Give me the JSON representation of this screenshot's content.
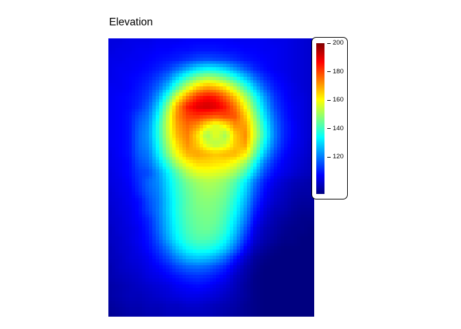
{
  "chart_data": {
    "type": "heatmap",
    "title": "Elevation",
    "value_range": [
      94,
      200
    ],
    "colormap": {
      "name": "jet",
      "stops": [
        [
          0.0,
          "#000080"
        ],
        [
          0.125,
          "#0000ff"
        ],
        [
          0.375,
          "#00ffff"
        ],
        [
          0.625,
          "#ffff00"
        ],
        [
          0.875,
          "#ff0000"
        ],
        [
          1.0,
          "#800000"
        ]
      ]
    },
    "colorbar": {
      "position": "right",
      "ticks": [
        200,
        180,
        160,
        140,
        120
      ]
    },
    "grid": {
      "cols": 22,
      "rows": 30,
      "values": [
        [
          104,
          104,
          105,
          105,
          105,
          106,
          106,
          106,
          107,
          107,
          107,
          107,
          107,
          106,
          106,
          106,
          106,
          105,
          105,
          104,
          103,
          102
        ],
        [
          104,
          105,
          105,
          106,
          106,
          107,
          107,
          108,
          108,
          109,
          109,
          109,
          108,
          108,
          107,
          107,
          106,
          106,
          105,
          104,
          103,
          102
        ],
        [
          105,
          105,
          106,
          106,
          107,
          108,
          109,
          110,
          112,
          114,
          115,
          114,
          113,
          111,
          109,
          108,
          107,
          106,
          105,
          104,
          103,
          102
        ],
        [
          105,
          106,
          106,
          107,
          108,
          110,
          113,
          118,
          124,
          130,
          133,
          132,
          128,
          122,
          116,
          111,
          108,
          106,
          105,
          104,
          103,
          102
        ],
        [
          105,
          106,
          107,
          108,
          110,
          114,
          120,
          130,
          140,
          148,
          152,
          150,
          145,
          137,
          128,
          119,
          112,
          108,
          106,
          104,
          103,
          102
        ],
        [
          106,
          106,
          107,
          109,
          112,
          118,
          128,
          142,
          155,
          165,
          170,
          168,
          162,
          152,
          140,
          128,
          117,
          110,
          107,
          105,
          103,
          102
        ],
        [
          106,
          107,
          108,
          110,
          114,
          124,
          140,
          158,
          172,
          182,
          186,
          184,
          176,
          166,
          152,
          138,
          124,
          113,
          108,
          105,
          104,
          102
        ],
        [
          106,
          107,
          108,
          111,
          117,
          130,
          150,
          170,
          184,
          190,
          192,
          190,
          184,
          174,
          160,
          144,
          128,
          115,
          109,
          106,
          104,
          102
        ],
        [
          106,
          107,
          109,
          115,
          120,
          135,
          155,
          172,
          180,
          182,
          180,
          178,
          180,
          178,
          166,
          150,
          132,
          118,
          110,
          106,
          104,
          102
        ],
        [
          106,
          107,
          109,
          117,
          122,
          138,
          156,
          170,
          176,
          172,
          162,
          156,
          162,
          172,
          170,
          154,
          136,
          120,
          111,
          107,
          104,
          102
        ],
        [
          106,
          107,
          109,
          118,
          123,
          138,
          155,
          168,
          174,
          164,
          150,
          158,
          150,
          166,
          172,
          156,
          138,
          121,
          111,
          107,
          104,
          102
        ],
        [
          106,
          107,
          109,
          118,
          122,
          136,
          152,
          164,
          172,
          166,
          156,
          152,
          156,
          166,
          170,
          152,
          134,
          119,
          110,
          106,
          104,
          101
        ],
        [
          105,
          107,
          109,
          117,
          120,
          133,
          148,
          160,
          168,
          170,
          168,
          166,
          168,
          168,
          162,
          146,
          128,
          115,
          108,
          105,
          103,
          101
        ],
        [
          105,
          106,
          108,
          115,
          118,
          128,
          140,
          152,
          160,
          164,
          164,
          163,
          162,
          158,
          150,
          136,
          120,
          111,
          106,
          104,
          102,
          100
        ],
        [
          104,
          106,
          108,
          113,
          115,
          123,
          133,
          143,
          152,
          157,
          158,
          157,
          155,
          150,
          141,
          128,
          115,
          108,
          105,
          103,
          101,
          100
        ],
        [
          104,
          105,
          107,
          112,
          118,
          122,
          131,
          139,
          146,
          150,
          152,
          151,
          148,
          142,
          132,
          120,
          110,
          105,
          102,
          100,
          99,
          98
        ],
        [
          103,
          105,
          106,
          111,
          117,
          121,
          130,
          138,
          144,
          148,
          150,
          149,
          146,
          139,
          129,
          117,
          108,
          103,
          101,
          99,
          98,
          98
        ],
        [
          103,
          104,
          106,
          108,
          115,
          120,
          129,
          137,
          143,
          147,
          148,
          147,
          144,
          136,
          126,
          114,
          106,
          102,
          100,
          98,
          97,
          97
        ],
        [
          102,
          104,
          105,
          108,
          114,
          120,
          129,
          137,
          143,
          146,
          147,
          146,
          142,
          134,
          123,
          111,
          104,
          100,
          99,
          97,
          96,
          96
        ],
        [
          102,
          103,
          105,
          107,
          111,
          119,
          128,
          136,
          142,
          145,
          146,
          145,
          140,
          131,
          120,
          108,
          102,
          99,
          97,
          96,
          95,
          95
        ],
        [
          101,
          103,
          104,
          106,
          110,
          118,
          127,
          135,
          141,
          144,
          145,
          143,
          138,
          128,
          116,
          105,
          100,
          98,
          96,
          95,
          95,
          94
        ],
        [
          101,
          102,
          104,
          106,
          109,
          116,
          125,
          133,
          139,
          142,
          142,
          140,
          134,
          124,
          112,
          103,
          99,
          97,
          95,
          95,
          94,
          94
        ],
        [
          100,
          102,
          103,
          105,
          108,
          113,
          120,
          128,
          134,
          137,
          137,
          134,
          128,
          118,
          107,
          100,
          97,
          95,
          94,
          94,
          94,
          94
        ],
        [
          100,
          101,
          103,
          104,
          106,
          110,
          115,
          121,
          126,
          128,
          127,
          124,
          118,
          109,
          102,
          97,
          95,
          94,
          94,
          94,
          94,
          94
        ],
        [
          99,
          101,
          102,
          103,
          105,
          107,
          110,
          114,
          117,
          118,
          117,
          114,
          110,
          104,
          99,
          96,
          94,
          94,
          94,
          94,
          94,
          94
        ],
        [
          99,
          100,
          101,
          102,
          104,
          105,
          107,
          109,
          111,
          112,
          111,
          109,
          106,
          101,
          98,
          95,
          94,
          94,
          94,
          94,
          94,
          94
        ],
        [
          98,
          99,
          100,
          101,
          102,
          103,
          104,
          106,
          107,
          108,
          107,
          105,
          103,
          100,
          97,
          95,
          94,
          94,
          94,
          94,
          94,
          94
        ],
        [
          98,
          99,
          100,
          100,
          101,
          102,
          103,
          104,
          105,
          105,
          104,
          103,
          101,
          99,
          97,
          95,
          94,
          94,
          94,
          94,
          94,
          94
        ],
        [
          97,
          98,
          99,
          99,
          100,
          100,
          101,
          101,
          102,
          102,
          101,
          100,
          99,
          98,
          96,
          95,
          94,
          94,
          94,
          94,
          94,
          94
        ],
        [
          96,
          97,
          98,
          98,
          99,
          99,
          100,
          100,
          100,
          100,
          100,
          99,
          98,
          97,
          96,
          95,
          94,
          94,
          94,
          94,
          94,
          94
        ]
      ]
    }
  }
}
